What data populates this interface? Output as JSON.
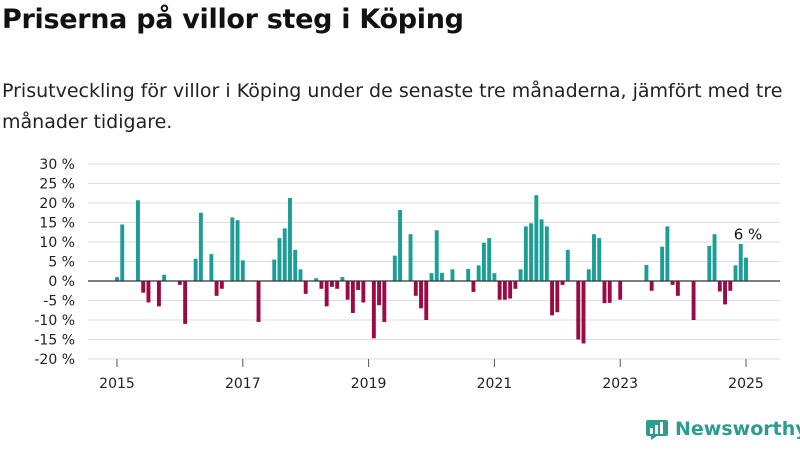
{
  "title": "Priserna på villor steg i Köping",
  "subtitle": "Prisutveckling för villor i Köping under de senaste tre månaderna, jämfört med tre månader tidigare.",
  "brand": "Newsworthy",
  "colors": {
    "positive": "#1a9e96",
    "negative": "#9c0a45",
    "grid": "#dddddd",
    "zero": "#333333",
    "brand": "#2a9d8f"
  },
  "chart_data": {
    "type": "bar",
    "title": "Priserna på villor steg i Köping",
    "xlabel": "",
    "ylabel": "",
    "ylim": [
      -20,
      30
    ],
    "y_ticks": [
      -20,
      -15,
      -10,
      -5,
      0,
      5,
      10,
      15,
      20,
      25,
      30
    ],
    "y_tick_labels": [
      "-20 %",
      "-15 %",
      "-10 %",
      "-5 %",
      "0 %",
      "5 %",
      "10 %",
      "15 %",
      "20 %",
      "25 %",
      "30 %"
    ],
    "x_ticks": [
      2015,
      2017,
      2019,
      2021,
      2023,
      2025
    ],
    "grid": true,
    "series_points": [
      {
        "x": "2015-01",
        "y": 1
      },
      {
        "x": "2015-02",
        "y": 14.5
      },
      {
        "x": "2015-05",
        "y": 20.7
      },
      {
        "x": "2015-06",
        "y": -3
      },
      {
        "x": "2015-07",
        "y": -5.5
      },
      {
        "x": "2015-09",
        "y": -6.5
      },
      {
        "x": "2015-10",
        "y": 1.6
      },
      {
        "x": "2016-01",
        "y": -1
      },
      {
        "x": "2016-02",
        "y": -11
      },
      {
        "x": "2016-04",
        "y": 5.7
      },
      {
        "x": "2016-05",
        "y": 17.5
      },
      {
        "x": "2016-07",
        "y": 6.9
      },
      {
        "x": "2016-08",
        "y": -3.8
      },
      {
        "x": "2016-09",
        "y": -2
      },
      {
        "x": "2016-11",
        "y": 16.3
      },
      {
        "x": "2016-12",
        "y": 15.6
      },
      {
        "x": "2017-01",
        "y": 5.3
      },
      {
        "x": "2017-04",
        "y": -10.5
      },
      {
        "x": "2017-07",
        "y": 5.5
      },
      {
        "x": "2017-08",
        "y": 11
      },
      {
        "x": "2017-09",
        "y": 13.5
      },
      {
        "x": "2017-10",
        "y": 21.3
      },
      {
        "x": "2017-11",
        "y": 8
      },
      {
        "x": "2017-12",
        "y": 3
      },
      {
        "x": "2018-01",
        "y": -3.3
      },
      {
        "x": "2018-03",
        "y": 0.7
      },
      {
        "x": "2018-04",
        "y": -2
      },
      {
        "x": "2018-05",
        "y": -6.5
      },
      {
        "x": "2018-06",
        "y": -1.5
      },
      {
        "x": "2018-07",
        "y": -2
      },
      {
        "x": "2018-08",
        "y": 1
      },
      {
        "x": "2018-09",
        "y": -4.8
      },
      {
        "x": "2018-10",
        "y": -8.2
      },
      {
        "x": "2018-11",
        "y": -2.3
      },
      {
        "x": "2018-12",
        "y": -5.5
      },
      {
        "x": "2019-02",
        "y": -14.7
      },
      {
        "x": "2019-03",
        "y": -6.2
      },
      {
        "x": "2019-04",
        "y": -10.5
      },
      {
        "x": "2019-06",
        "y": 6.5
      },
      {
        "x": "2019-07",
        "y": 18.2
      },
      {
        "x": "2019-09",
        "y": 12
      },
      {
        "x": "2019-10",
        "y": -3.8
      },
      {
        "x": "2019-11",
        "y": -7
      },
      {
        "x": "2019-12",
        "y": -10
      },
      {
        "x": "2020-01",
        "y": 2
      },
      {
        "x": "2020-02",
        "y": 13
      },
      {
        "x": "2020-03",
        "y": 2.1
      },
      {
        "x": "2020-05",
        "y": 3
      },
      {
        "x": "2020-08",
        "y": 3.1
      },
      {
        "x": "2020-09",
        "y": -2.8
      },
      {
        "x": "2020-10",
        "y": 4
      },
      {
        "x": "2020-11",
        "y": 9.8
      },
      {
        "x": "2020-12",
        "y": 11
      },
      {
        "x": "2021-01",
        "y": 2
      },
      {
        "x": "2021-02",
        "y": -4.8
      },
      {
        "x": "2021-03",
        "y": -4.8
      },
      {
        "x": "2021-04",
        "y": -4.5
      },
      {
        "x": "2021-05",
        "y": -2
      },
      {
        "x": "2021-06",
        "y": 3
      },
      {
        "x": "2021-07",
        "y": 14
      },
      {
        "x": "2021-08",
        "y": 14.8
      },
      {
        "x": "2021-09",
        "y": 22
      },
      {
        "x": "2021-10",
        "y": 15.8
      },
      {
        "x": "2021-11",
        "y": 14
      },
      {
        "x": "2021-12",
        "y": -8.8
      },
      {
        "x": "2022-01",
        "y": -8
      },
      {
        "x": "2022-02",
        "y": -1
      },
      {
        "x": "2022-03",
        "y": 8
      },
      {
        "x": "2022-05",
        "y": -15
      },
      {
        "x": "2022-06",
        "y": -16
      },
      {
        "x": "2022-07",
        "y": 3
      },
      {
        "x": "2022-08",
        "y": 12
      },
      {
        "x": "2022-09",
        "y": 11
      },
      {
        "x": "2022-10",
        "y": -5.7
      },
      {
        "x": "2022-11",
        "y": -5.6
      },
      {
        "x": "2023-01",
        "y": -4.8
      },
      {
        "x": "2023-06",
        "y": 4.1
      },
      {
        "x": "2023-07",
        "y": -2.5
      },
      {
        "x": "2023-09",
        "y": 8.8
      },
      {
        "x": "2023-10",
        "y": 14
      },
      {
        "x": "2023-11",
        "y": -1
      },
      {
        "x": "2023-12",
        "y": -3.8
      },
      {
        "x": "2024-03",
        "y": -10
      },
      {
        "x": "2024-06",
        "y": 9
      },
      {
        "x": "2024-07",
        "y": 12
      },
      {
        "x": "2024-08",
        "y": -2.7
      },
      {
        "x": "2024-09",
        "y": -6
      },
      {
        "x": "2024-10",
        "y": -2.5
      },
      {
        "x": "2024-11",
        "y": 4
      },
      {
        "x": "2024-12",
        "y": 9.5
      },
      {
        "x": "2025-01",
        "y": 6
      }
    ],
    "annotation": {
      "x": "2025-01",
      "text": "6 %"
    }
  }
}
